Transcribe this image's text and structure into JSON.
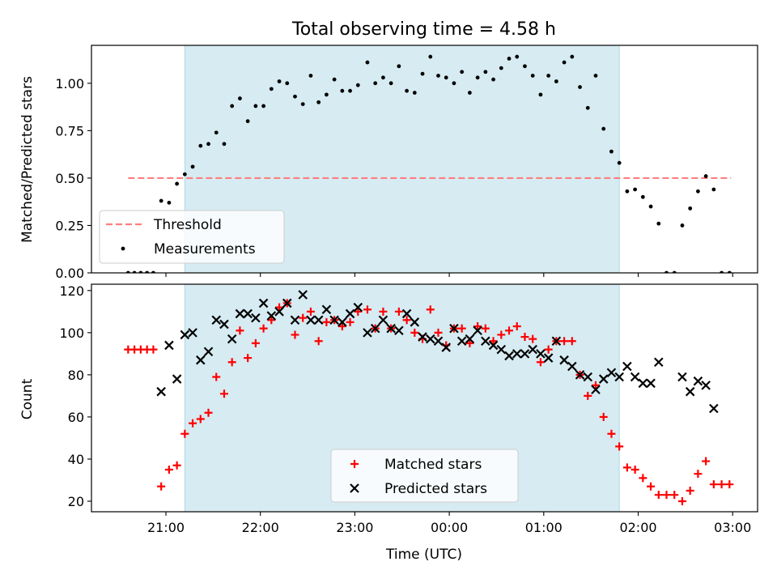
{
  "figure": {
    "title": "Total observing time = 4.58 h",
    "xlabel": "Time (UTC)",
    "x_tick_labels": [
      "21:00",
      "22:00",
      "23:00",
      "00:00",
      "01:00",
      "02:00",
      "03:00"
    ],
    "observing_window": {
      "start": "21:12",
      "end": "01:48",
      "color": "#add8e6"
    }
  },
  "chart_data": [
    {
      "type": "scatter",
      "ylabel": "Matched/Predicted stars",
      "ylim": [
        0,
        1.2
      ],
      "y_ticks": [
        "0.00",
        "0.25",
        "0.50",
        "0.75",
        "1.00"
      ],
      "threshold": {
        "name": "Threshold",
        "value": 0.5,
        "x_start": "20:36",
        "x_end": "02:59",
        "color": "#ff7f7f"
      },
      "legend": {
        "position": "lower-left",
        "entries": [
          "Threshold",
          "Measurements"
        ]
      },
      "series": [
        {
          "name": "Measurements",
          "color": "#000000",
          "points": [
            [
              "20:36",
              0
            ],
            [
              "20:40",
              0
            ],
            [
              "20:44",
              0
            ],
            [
              "20:48",
              0
            ],
            [
              "20:52",
              0
            ],
            [
              "20:57",
              0.38
            ],
            [
              "21:02",
              0.37
            ],
            [
              "21:07",
              0.47
            ],
            [
              "21:12",
              0.52
            ],
            [
              "21:17",
              0.56
            ],
            [
              "21:22",
              0.67
            ],
            [
              "21:27",
              0.68
            ],
            [
              "21:32",
              0.74
            ],
            [
              "21:37",
              0.68
            ],
            [
              "21:42",
              0.88
            ],
            [
              "21:47",
              0.92
            ],
            [
              "21:52",
              0.8
            ],
            [
              "21:57",
              0.88
            ],
            [
              "22:02",
              0.88
            ],
            [
              "22:07",
              0.97
            ],
            [
              "22:12",
              1.01
            ],
            [
              "22:17",
              1.0
            ],
            [
              "22:22",
              0.93
            ],
            [
              "22:27",
              0.89
            ],
            [
              "22:32",
              1.04
            ],
            [
              "22:37",
              0.9
            ],
            [
              "22:42",
              0.94
            ],
            [
              "22:47",
              1.02
            ],
            [
              "22:52",
              0.96
            ],
            [
              "22:57",
              0.96
            ],
            [
              "23:02",
              0.99
            ],
            [
              "23:08",
              1.11
            ],
            [
              "23:13",
              1.0
            ],
            [
              "23:18",
              1.03
            ],
            [
              "23:23",
              1.0
            ],
            [
              "23:28",
              1.09
            ],
            [
              "23:33",
              0.96
            ],
            [
              "23:38",
              0.95
            ],
            [
              "23:43",
              1.05
            ],
            [
              "23:48",
              1.14
            ],
            [
              "23:53",
              1.04
            ],
            [
              "23:58",
              1.03
            ],
            [
              "00:03",
              1.0
            ],
            [
              "00:08",
              1.06
            ],
            [
              "00:13",
              0.95
            ],
            [
              "00:18",
              1.03
            ],
            [
              "00:23",
              1.06
            ],
            [
              "00:28",
              1.02
            ],
            [
              "00:33",
              1.08
            ],
            [
              "00:38",
              1.13
            ],
            [
              "00:43",
              1.14
            ],
            [
              "00:48",
              1.09
            ],
            [
              "00:53",
              1.04
            ],
            [
              "00:58",
              0.94
            ],
            [
              "01:03",
              1.04
            ],
            [
              "01:08",
              1.01
            ],
            [
              "01:13",
              1.11
            ],
            [
              "01:18",
              1.14
            ],
            [
              "01:23",
              0.98
            ],
            [
              "01:28",
              0.87
            ],
            [
              "01:33",
              1.04
            ],
            [
              "01:38",
              0.76
            ],
            [
              "01:43",
              0.64
            ],
            [
              "01:48",
              0.58
            ],
            [
              "01:53",
              0.43
            ],
            [
              "01:58",
              0.44
            ],
            [
              "02:03",
              0.4
            ],
            [
              "02:08",
              0.35
            ],
            [
              "02:13",
              0.26
            ],
            [
              "02:18",
              0
            ],
            [
              "02:23",
              0
            ],
            [
              "02:28",
              0.25
            ],
            [
              "02:33",
              0.34
            ],
            [
              "02:38",
              0.43
            ],
            [
              "02:43",
              0.51
            ],
            [
              "02:48",
              0.44
            ],
            [
              "02:53",
              0
            ],
            [
              "02:58",
              0
            ]
          ]
        }
      ]
    },
    {
      "type": "scatter",
      "ylabel": "Count",
      "ylim": [
        15,
        123
      ],
      "y_ticks": [
        "20",
        "40",
        "60",
        "80",
        "100",
        "120"
      ],
      "legend": {
        "position": "lower-center",
        "entries": [
          "Matched stars",
          "Predicted stars"
        ]
      },
      "series": [
        {
          "name": "Matched stars",
          "marker": "plus",
          "color": "#ff0000",
          "points": [
            [
              "20:36",
              92
            ],
            [
              "20:40",
              92
            ],
            [
              "20:44",
              92
            ],
            [
              "20:48",
              92
            ],
            [
              "20:52",
              92
            ],
            [
              "20:57",
              27
            ],
            [
              "21:02",
              35
            ],
            [
              "21:07",
              37
            ],
            [
              "21:12",
              52
            ],
            [
              "21:17",
              57
            ],
            [
              "21:22",
              59
            ],
            [
              "21:27",
              62
            ],
            [
              "21:32",
              79
            ],
            [
              "21:37",
              71
            ],
            [
              "21:42",
              86
            ],
            [
              "21:47",
              101
            ],
            [
              "21:52",
              88
            ],
            [
              "21:57",
              95
            ],
            [
              "22:02",
              102
            ],
            [
              "22:07",
              106
            ],
            [
              "22:12",
              112
            ],
            [
              "22:17",
              114
            ],
            [
              "22:22",
              99
            ],
            [
              "22:27",
              107
            ],
            [
              "22:32",
              110
            ],
            [
              "22:37",
              96
            ],
            [
              "22:42",
              105
            ],
            [
              "22:47",
              106
            ],
            [
              "22:52",
              103
            ],
            [
              "22:57",
              105
            ],
            [
              "23:02",
              110
            ],
            [
              "23:08",
              111
            ],
            [
              "23:13",
              102
            ],
            [
              "23:18",
              110
            ],
            [
              "23:23",
              102
            ],
            [
              "23:28",
              110
            ],
            [
              "23:33",
              106
            ],
            [
              "23:38",
              100
            ],
            [
              "23:43",
              97
            ],
            [
              "23:48",
              111
            ],
            [
              "23:53",
              100
            ],
            [
              "23:58",
              94
            ],
            [
              "00:03",
              102
            ],
            [
              "00:08",
              102
            ],
            [
              "00:13",
              95
            ],
            [
              "00:18",
              103
            ],
            [
              "00:23",
              102
            ],
            [
              "00:28",
              96
            ],
            [
              "00:33",
              99
            ],
            [
              "00:38",
              101
            ],
            [
              "00:43",
              103
            ],
            [
              "00:48",
              98
            ],
            [
              "00:53",
              97
            ],
            [
              "00:58",
              86
            ],
            [
              "01:03",
              92
            ],
            [
              "01:08",
              96
            ],
            [
              "01:13",
              96
            ],
            [
              "01:18",
              96
            ],
            [
              "01:23",
              80
            ],
            [
              "01:28",
              70
            ],
            [
              "01:33",
              75
            ],
            [
              "01:38",
              60
            ],
            [
              "01:43",
              52
            ],
            [
              "01:48",
              46
            ],
            [
              "01:53",
              36
            ],
            [
              "01:58",
              35
            ],
            [
              "02:03",
              31
            ],
            [
              "02:08",
              27
            ],
            [
              "02:13",
              23
            ],
            [
              "02:18",
              23
            ],
            [
              "02:23",
              23
            ],
            [
              "02:28",
              20
            ],
            [
              "02:33",
              25
            ],
            [
              "02:38",
              33
            ],
            [
              "02:43",
              39
            ],
            [
              "02:48",
              28
            ],
            [
              "02:53",
              28
            ],
            [
              "02:58",
              28
            ]
          ]
        },
        {
          "name": "Predicted stars",
          "marker": "x",
          "color": "#000000",
          "points": [
            [
              "20:57",
              72
            ],
            [
              "21:02",
              94
            ],
            [
              "21:07",
              78
            ],
            [
              "21:12",
              99
            ],
            [
              "21:17",
              100
            ],
            [
              "21:22",
              87
            ],
            [
              "21:27",
              91
            ],
            [
              "21:32",
              106
            ],
            [
              "21:37",
              104
            ],
            [
              "21:42",
              97
            ],
            [
              "21:47",
              109
            ],
            [
              "21:52",
              109
            ],
            [
              "21:57",
              107
            ],
            [
              "22:02",
              114
            ],
            [
              "22:07",
              108
            ],
            [
              "22:12",
              110
            ],
            [
              "22:17",
              114
            ],
            [
              "22:22",
              106
            ],
            [
              "22:27",
              118
            ],
            [
              "22:32",
              106
            ],
            [
              "22:37",
              106
            ],
            [
              "22:42",
              111
            ],
            [
              "22:47",
              106
            ],
            [
              "22:52",
              105
            ],
            [
              "22:57",
              109
            ],
            [
              "23:02",
              112
            ],
            [
              "23:08",
              100
            ],
            [
              "23:13",
              102
            ],
            [
              "23:18",
              106
            ],
            [
              "23:23",
              102
            ],
            [
              "23:28",
              101
            ],
            [
              "23:33",
              109
            ],
            [
              "23:38",
              105
            ],
            [
              "23:43",
              98
            ],
            [
              "23:48",
              97
            ],
            [
              "23:53",
              96
            ],
            [
              "23:58",
              93
            ],
            [
              "00:03",
              102
            ],
            [
              "00:08",
              96
            ],
            [
              "00:13",
              97
            ],
            [
              "00:18",
              101
            ],
            [
              "00:23",
              96
            ],
            [
              "00:28",
              94
            ],
            [
              "00:33",
              92
            ],
            [
              "00:38",
              89
            ],
            [
              "00:43",
              90
            ],
            [
              "00:48",
              90
            ],
            [
              "00:53",
              92
            ],
            [
              "00:58",
              90
            ],
            [
              "01:03",
              88
            ],
            [
              "01:08",
              96
            ],
            [
              "01:13",
              87
            ],
            [
              "01:18",
              84
            ],
            [
              "01:23",
              80
            ],
            [
              "01:28",
              79
            ],
            [
              "01:33",
              73
            ],
            [
              "01:38",
              78
            ],
            [
              "01:43",
              81
            ],
            [
              "01:48",
              79
            ],
            [
              "01:53",
              84
            ],
            [
              "01:58",
              79
            ],
            [
              "02:03",
              76
            ],
            [
              "02:08",
              76
            ],
            [
              "02:13",
              86
            ],
            [
              "02:28",
              79
            ],
            [
              "02:33",
              72
            ],
            [
              "02:38",
              77
            ],
            [
              "02:43",
              75
            ],
            [
              "02:48",
              64
            ]
          ]
        }
      ]
    }
  ]
}
